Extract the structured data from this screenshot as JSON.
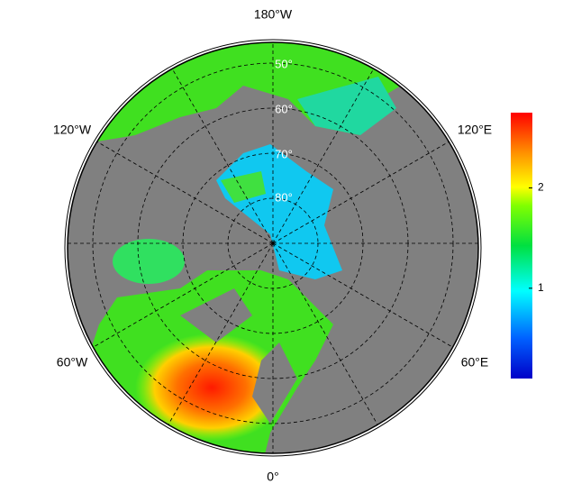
{
  "map": {
    "lon_labels": [
      "180°W",
      "120°W",
      "120°E",
      "60°W",
      "60°E",
      "0°"
    ],
    "lat_labels": [
      "50°",
      "60°",
      "70°",
      "80°"
    ]
  },
  "colorbar": {
    "lim": [
      0.1,
      2.75
    ],
    "ticks": [
      1,
      2
    ]
  }
}
